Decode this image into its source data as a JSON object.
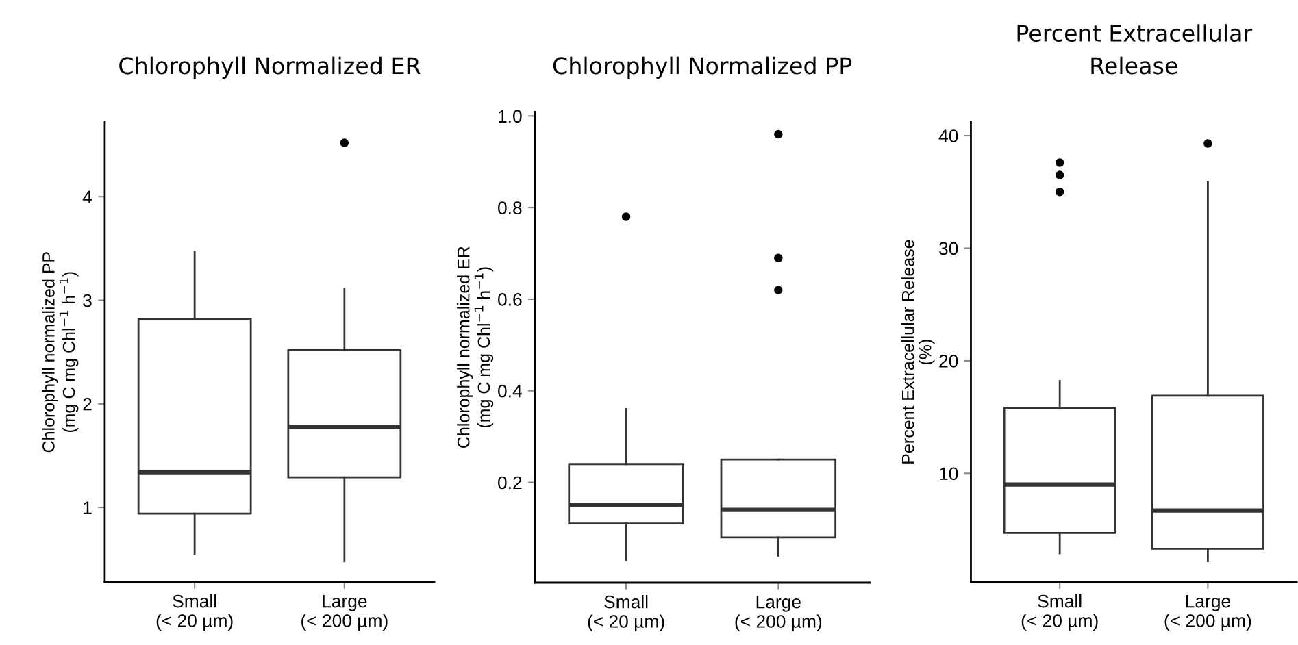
{
  "chart_data": [
    {
      "type": "box",
      "title": "Chlorophyll Normalized ER",
      "ylabel": "Chlorophyll normalized PP\n(mg C mg Chl$^{−1}$ h$^{−1}$)",
      "categories": [
        "Small\n(< 20 µm)",
        "Large\n(< 200 µm)"
      ],
      "ylim": [
        0.28,
        4.72
      ],
      "yticks": [
        1,
        2,
        3,
        4
      ],
      "boxes": [
        {
          "low": 0.55,
          "q1": 0.94,
          "median": 1.34,
          "q3": 2.82,
          "high": 3.47
        },
        {
          "low": 0.48,
          "q1": 1.29,
          "median": 1.78,
          "q3": 2.52,
          "high": 3.11,
          "outliers": [
            4.52
          ]
        }
      ]
    },
    {
      "type": "box",
      "title": "Chlorophyll Normalized PP",
      "ylabel": "Chlorophyll normalized ER\n(mg C mg Chl$^{−1}$ h$^{−1}$)",
      "categories": [
        "Small\n(< 20 µm)",
        "Large\n(< 200 µm)"
      ],
      "ylim": [
        -0.019,
        1.009
      ],
      "yticks": [
        {
          "value": 0.2,
          "label": "0.2"
        },
        {
          "value": 0.4,
          "label": "0.4"
        },
        {
          "value": 0.6,
          "label": "0.6"
        },
        {
          "value": 0.8,
          "label": "0.8"
        },
        {
          "value": 1.0,
          "label": "1.0"
        }
      ],
      "boxes": [
        {
          "low": 0.03,
          "q1": 0.11,
          "median": 0.15,
          "q3": 0.24,
          "high": 0.36,
          "outliers": [
            0.78
          ]
        },
        {
          "low": 0.04,
          "q1": 0.08,
          "median": 0.14,
          "q3": 0.25,
          "high": 0.25,
          "outliers": [
            0.96,
            0.69,
            0.62
          ]
        }
      ]
    },
    {
      "type": "box",
      "title": "Percent Extracellular\nRelease",
      "ylabel": "Percent Extracellular Release\n(%)",
      "categories": [
        "Small\n(< 20 µm)",
        "Large\n(< 200 µm)"
      ],
      "ylim": [
        0.35,
        41.2
      ],
      "yticks": [
        10,
        20,
        30,
        40
      ],
      "boxes": [
        {
          "low": 2.9,
          "q1": 4.7,
          "median": 9.0,
          "q3": 15.8,
          "high": 18.2,
          "outliers": [
            37.6,
            36.5,
            35.0
          ]
        },
        {
          "low": 2.2,
          "q1": 3.3,
          "median": 6.7,
          "q3": 16.9,
          "high": 35.9,
          "outliers": [
            39.3
          ]
        }
      ]
    }
  ]
}
